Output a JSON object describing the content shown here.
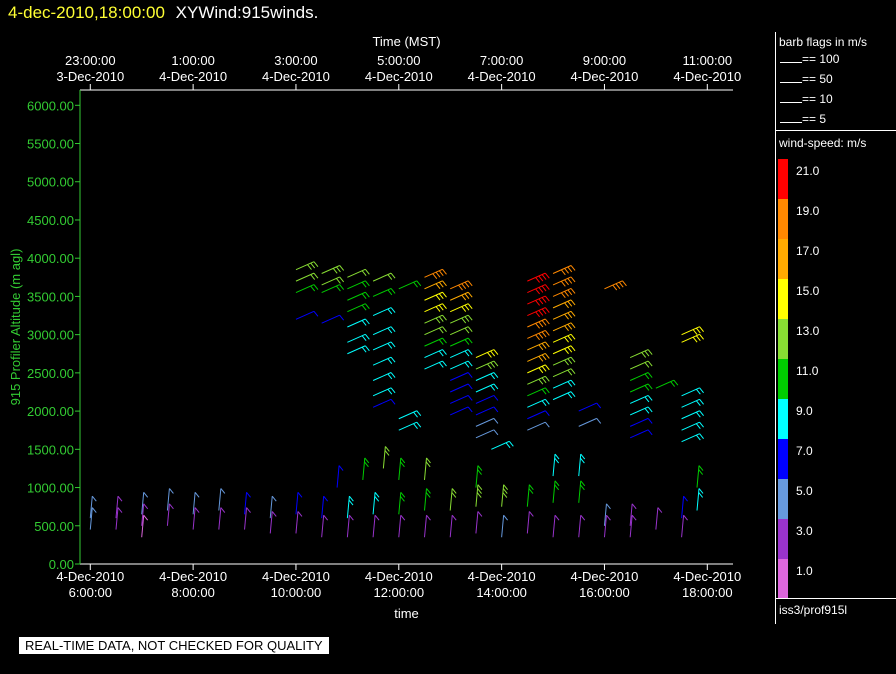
{
  "header": {
    "datetime": "4-dec-2010,18:00:00",
    "plot_name": "XYWind:915winds."
  },
  "disclaimer": "REAL-TIME DATA, NOT CHECKED FOR QUALITY",
  "legend": {
    "barb_title": "barb flags in m/s",
    "barb_flags": [
      "== 100",
      "== 50",
      "== 10",
      "== 5"
    ],
    "speed_title": "wind-speed: m/s",
    "colorbar": [
      {
        "label": "21.0",
        "color": "#ff0000"
      },
      {
        "label": "19.0",
        "color": "#ff8800"
      },
      {
        "label": "17.0",
        "color": "#ffaa00"
      },
      {
        "label": "15.0",
        "color": "#ffff00"
      },
      {
        "label": "13.0",
        "color": "#88dd33"
      },
      {
        "label": "11.0",
        "color": "#00cc00"
      },
      {
        "label": "9.0",
        "color": "#00ffff"
      },
      {
        "label": "7.0",
        "color": "#0000ff"
      },
      {
        "label": "5.0",
        "color": "#6699dd"
      },
      {
        "label": "3.0",
        "color": "#9933cc"
      },
      {
        "label": "1.0",
        "color": "#dd66dd"
      }
    ],
    "station": "iss3/prof915l"
  },
  "chart_data": {
    "type": "scatter",
    "title": "",
    "ylabel": "915 Profiler Altitude (m agl)",
    "xlabel": "time",
    "x2label": "Time (MST)",
    "ylim": [
      0,
      6200
    ],
    "yticks": [
      "0.00",
      "500.00",
      "1000.00",
      "1500.00",
      "2000.00",
      "2500.00",
      "3000.00",
      "3500.00",
      "4000.00",
      "4500.00",
      "5000.00",
      "5500.00",
      "6000.00"
    ],
    "xlim_hours_utc": [
      5.8,
      18.5
    ],
    "xticks_bottom": [
      {
        "h": 6,
        "line1": "4-Dec-2010",
        "line2": "6:00:00"
      },
      {
        "h": 8,
        "line1": "4-Dec-2010",
        "line2": "8:00:00"
      },
      {
        "h": 10,
        "line1": "4-Dec-2010",
        "line2": "10:00:00"
      },
      {
        "h": 12,
        "line1": "4-Dec-2010",
        "line2": "12:00:00"
      },
      {
        "h": 14,
        "line1": "4-Dec-2010",
        "line2": "14:00:00"
      },
      {
        "h": 16,
        "line1": "4-Dec-2010",
        "line2": "16:00:00"
      },
      {
        "h": 18,
        "line1": "4-Dec-2010",
        "line2": "18:00:00"
      }
    ],
    "xticks_top": [
      {
        "h": 6,
        "line1": "23:00:00",
        "line2": "3-Dec-2010"
      },
      {
        "h": 8,
        "line1": "1:00:00",
        "line2": "4-Dec-2010"
      },
      {
        "h": 10,
        "line1": "3:00:00",
        "line2": "4-Dec-2010"
      },
      {
        "h": 12,
        "line1": "5:00:00",
        "line2": "4-Dec-2010"
      },
      {
        "h": 14,
        "line1": "7:00:00",
        "line2": "4-Dec-2010"
      },
      {
        "h": 16,
        "line1": "9:00:00",
        "line2": "4-Dec-2010"
      },
      {
        "h": 18,
        "line1": "11:00:00",
        "line2": "4-Dec-2010"
      }
    ],
    "barbs": [
      {
        "t": 6.0,
        "z": 600,
        "s": 4
      },
      {
        "t": 6.0,
        "z": 450,
        "s": 4
      },
      {
        "t": 6.5,
        "z": 600,
        "s": 3
      },
      {
        "t": 6.5,
        "z": 450,
        "s": 2
      },
      {
        "t": 7.0,
        "z": 650,
        "s": 4
      },
      {
        "t": 7.0,
        "z": 500,
        "s": 3
      },
      {
        "t": 7.0,
        "z": 350,
        "s": 1
      },
      {
        "t": 7.5,
        "z": 700,
        "s": 5
      },
      {
        "t": 7.5,
        "z": 500,
        "s": 3
      },
      {
        "t": 8.0,
        "z": 650,
        "s": 4
      },
      {
        "t": 8.0,
        "z": 450,
        "s": 2
      },
      {
        "t": 8.5,
        "z": 700,
        "s": 5
      },
      {
        "t": 8.5,
        "z": 450,
        "s": 3
      },
      {
        "t": 9.0,
        "z": 650,
        "s": 6
      },
      {
        "t": 9.0,
        "z": 450,
        "s": 2
      },
      {
        "t": 9.5,
        "z": 600,
        "s": 5
      },
      {
        "t": 9.5,
        "z": 400,
        "s": 2
      },
      {
        "t": 10.0,
        "z": 650,
        "s": 7
      },
      {
        "t": 10.0,
        "z": 400,
        "s": 2
      },
      {
        "t": 10.5,
        "z": 600,
        "s": 6
      },
      {
        "t": 10.5,
        "z": 350,
        "s": 2
      },
      {
        "t": 10.8,
        "z": 1000,
        "s": 7
      },
      {
        "t": 11.0,
        "z": 600,
        "s": 8
      },
      {
        "t": 11.0,
        "z": 350,
        "s": 3
      },
      {
        "t": 11.3,
        "z": 1100,
        "s": 11
      },
      {
        "t": 11.5,
        "z": 650,
        "s": 8
      },
      {
        "t": 11.5,
        "z": 350,
        "s": 3
      },
      {
        "t": 11.7,
        "z": 1250,
        "s": 12
      },
      {
        "t": 12.0,
        "z": 650,
        "s": 11
      },
      {
        "t": 12.0,
        "z": 350,
        "s": 3
      },
      {
        "t": 12.0,
        "z": 1100,
        "s": 11
      },
      {
        "t": 12.5,
        "z": 700,
        "s": 11
      },
      {
        "t": 12.5,
        "z": 350,
        "s": 2
      },
      {
        "t": 12.5,
        "z": 1100,
        "s": 12
      },
      {
        "t": 13.0,
        "z": 700,
        "s": 12
      },
      {
        "t": 13.0,
        "z": 350,
        "s": 3
      },
      {
        "t": 13.5,
        "z": 750,
        "s": 13
      },
      {
        "t": 13.5,
        "z": 400,
        "s": 3
      },
      {
        "t": 13.5,
        "z": 1000,
        "s": 11
      },
      {
        "t": 13.8,
        "z": 1500,
        "s": 9
      },
      {
        "t": 14.0,
        "z": 750,
        "s": 13
      },
      {
        "t": 14.0,
        "z": 350,
        "s": 4
      },
      {
        "t": 14.5,
        "z": 750,
        "s": 11
      },
      {
        "t": 14.5,
        "z": 400,
        "s": 3
      },
      {
        "t": 15.0,
        "z": 800,
        "s": 11
      },
      {
        "t": 15.0,
        "z": 1150,
        "s": 9
      },
      {
        "t": 15.0,
        "z": 350,
        "s": 3
      },
      {
        "t": 15.5,
        "z": 800,
        "s": 11
      },
      {
        "t": 15.5,
        "z": 1150,
        "s": 9
      },
      {
        "t": 15.5,
        "z": 350,
        "s": 3
      },
      {
        "t": 16.0,
        "z": 500,
        "s": 4
      },
      {
        "t": 16.0,
        "z": 350,
        "s": 3
      },
      {
        "t": 16.5,
        "z": 500,
        "s": 3
      },
      {
        "t": 16.5,
        "z": 350,
        "s": 2
      },
      {
        "t": 17.0,
        "z": 450,
        "s": 3
      },
      {
        "t": 17.5,
        "z": 600,
        "s": 7
      },
      {
        "t": 17.5,
        "z": 350,
        "s": 3
      },
      {
        "t": 17.8,
        "z": 1000,
        "s": 11
      },
      {
        "t": 17.8,
        "z": 700,
        "s": 8
      },
      {
        "t": 10.0,
        "z": 3850,
        "s": 13
      },
      {
        "t": 10.0,
        "z": 3700,
        "s": 12
      },
      {
        "t": 10.0,
        "z": 3550,
        "s": 11
      },
      {
        "t": 10.0,
        "z": 3200,
        "s": 7
      },
      {
        "t": 10.5,
        "z": 3800,
        "s": 13
      },
      {
        "t": 10.5,
        "z": 3650,
        "s": 12
      },
      {
        "t": 10.5,
        "z": 3550,
        "s": 11
      },
      {
        "t": 10.5,
        "z": 3150,
        "s": 7
      },
      {
        "t": 11.0,
        "z": 3750,
        "s": 12
      },
      {
        "t": 11.0,
        "z": 3600,
        "s": 11
      },
      {
        "t": 11.0,
        "z": 3450,
        "s": 11
      },
      {
        "t": 11.0,
        "z": 3300,
        "s": 10
      },
      {
        "t": 11.0,
        "z": 3100,
        "s": 9
      },
      {
        "t": 11.0,
        "z": 2900,
        "s": 9
      },
      {
        "t": 11.0,
        "z": 2750,
        "s": 9
      },
      {
        "t": 11.5,
        "z": 3700,
        "s": 12
      },
      {
        "t": 11.5,
        "z": 3500,
        "s": 11
      },
      {
        "t": 11.5,
        "z": 3250,
        "s": 8
      },
      {
        "t": 11.5,
        "z": 3000,
        "s": 8
      },
      {
        "t": 11.5,
        "z": 2800,
        "s": 8
      },
      {
        "t": 11.5,
        "z": 2600,
        "s": 9
      },
      {
        "t": 11.5,
        "z": 2400,
        "s": 8
      },
      {
        "t": 11.5,
        "z": 2200,
        "s": 8
      },
      {
        "t": 11.5,
        "z": 2050,
        "s": 7
      },
      {
        "t": 12.0,
        "z": 3600,
        "s": 11
      },
      {
        "t": 12.0,
        "z": 1900,
        "s": 9
      },
      {
        "t": 12.0,
        "z": 1750,
        "s": 9
      },
      {
        "t": 12.5,
        "z": 3750,
        "s": 18
      },
      {
        "t": 12.5,
        "z": 3600,
        "s": 16
      },
      {
        "t": 12.5,
        "z": 3450,
        "s": 15
      },
      {
        "t": 12.5,
        "z": 3300,
        "s": 14
      },
      {
        "t": 12.5,
        "z": 3150,
        "s": 13
      },
      {
        "t": 12.5,
        "z": 3000,
        "s": 12
      },
      {
        "t": 12.5,
        "z": 2850,
        "s": 11
      },
      {
        "t": 12.5,
        "z": 2700,
        "s": 9
      },
      {
        "t": 12.5,
        "z": 2550,
        "s": 8
      },
      {
        "t": 13.0,
        "z": 3600,
        "s": 18
      },
      {
        "t": 13.0,
        "z": 3450,
        "s": 16
      },
      {
        "t": 13.0,
        "z": 3300,
        "s": 14
      },
      {
        "t": 13.0,
        "z": 3150,
        "s": 13
      },
      {
        "t": 13.0,
        "z": 3000,
        "s": 12
      },
      {
        "t": 13.0,
        "z": 2850,
        "s": 10
      },
      {
        "t": 13.0,
        "z": 2700,
        "s": 8
      },
      {
        "t": 13.0,
        "z": 2550,
        "s": 8
      },
      {
        "t": 13.0,
        "z": 2400,
        "s": 7
      },
      {
        "t": 13.0,
        "z": 2250,
        "s": 7
      },
      {
        "t": 13.0,
        "z": 2100,
        "s": 6
      },
      {
        "t": 13.0,
        "z": 1950,
        "s": 6
      },
      {
        "t": 13.5,
        "z": 2700,
        "s": 15
      },
      {
        "t": 13.5,
        "z": 2550,
        "s": 13
      },
      {
        "t": 13.5,
        "z": 2400,
        "s": 9
      },
      {
        "t": 13.5,
        "z": 2250,
        "s": 8
      },
      {
        "t": 13.5,
        "z": 2100,
        "s": 7
      },
      {
        "t": 13.5,
        "z": 1950,
        "s": 6
      },
      {
        "t": 13.5,
        "z": 1800,
        "s": 5
      },
      {
        "t": 13.5,
        "z": 1650,
        "s": 5
      },
      {
        "t": 14.5,
        "z": 3700,
        "s": 21
      },
      {
        "t": 14.5,
        "z": 3550,
        "s": 21
      },
      {
        "t": 14.5,
        "z": 3400,
        "s": 21
      },
      {
        "t": 14.5,
        "z": 3250,
        "s": 20
      },
      {
        "t": 14.5,
        "z": 3100,
        "s": 19
      },
      {
        "t": 14.5,
        "z": 2950,
        "s": 18
      },
      {
        "t": 14.5,
        "z": 2800,
        "s": 17
      },
      {
        "t": 14.5,
        "z": 2650,
        "s": 16
      },
      {
        "t": 14.5,
        "z": 2500,
        "s": 15
      },
      {
        "t": 14.5,
        "z": 2350,
        "s": 13
      },
      {
        "t": 14.5,
        "z": 2200,
        "s": 10
      },
      {
        "t": 14.5,
        "z": 2050,
        "s": 8
      },
      {
        "t": 14.5,
        "z": 1900,
        "s": 7
      },
      {
        "t": 14.5,
        "z": 1750,
        "s": 4
      },
      {
        "t": 15.0,
        "z": 3800,
        "s": 19
      },
      {
        "t": 15.0,
        "z": 3650,
        "s": 18
      },
      {
        "t": 15.0,
        "z": 3500,
        "s": 18
      },
      {
        "t": 15.0,
        "z": 3350,
        "s": 17
      },
      {
        "t": 15.0,
        "z": 3200,
        "s": 16
      },
      {
        "t": 15.0,
        "z": 3050,
        "s": 16
      },
      {
        "t": 15.0,
        "z": 2900,
        "s": 15
      },
      {
        "t": 15.0,
        "z": 2750,
        "s": 14
      },
      {
        "t": 15.0,
        "z": 2600,
        "s": 13
      },
      {
        "t": 15.0,
        "z": 2450,
        "s": 12
      },
      {
        "t": 15.0,
        "z": 2300,
        "s": 9
      },
      {
        "t": 15.0,
        "z": 2150,
        "s": 8
      },
      {
        "t": 15.5,
        "z": 2000,
        "s": 7
      },
      {
        "t": 15.5,
        "z": 1800,
        "s": 5
      },
      {
        "t": 16.0,
        "z": 3600,
        "s": 19
      },
      {
        "t": 16.5,
        "z": 2700,
        "s": 13
      },
      {
        "t": 16.5,
        "z": 2550,
        "s": 12
      },
      {
        "t": 16.5,
        "z": 2400,
        "s": 11
      },
      {
        "t": 16.5,
        "z": 2250,
        "s": 11
      },
      {
        "t": 16.5,
        "z": 2100,
        "s": 9
      },
      {
        "t": 16.5,
        "z": 1950,
        "s": 8
      },
      {
        "t": 16.5,
        "z": 1800,
        "s": 7
      },
      {
        "t": 16.5,
        "z": 1650,
        "s": 7
      },
      {
        "t": 17.0,
        "z": 2300,
        "s": 11
      },
      {
        "t": 17.5,
        "z": 3000,
        "s": 15
      },
      {
        "t": 17.5,
        "z": 2900,
        "s": 14
      },
      {
        "t": 17.5,
        "z": 2200,
        "s": 9
      },
      {
        "t": 17.5,
        "z": 2050,
        "s": 9
      },
      {
        "t": 17.5,
        "z": 1900,
        "s": 9
      },
      {
        "t": 17.5,
        "z": 1750,
        "s": 9
      },
      {
        "t": 17.5,
        "z": 1600,
        "s": 9
      }
    ]
  }
}
